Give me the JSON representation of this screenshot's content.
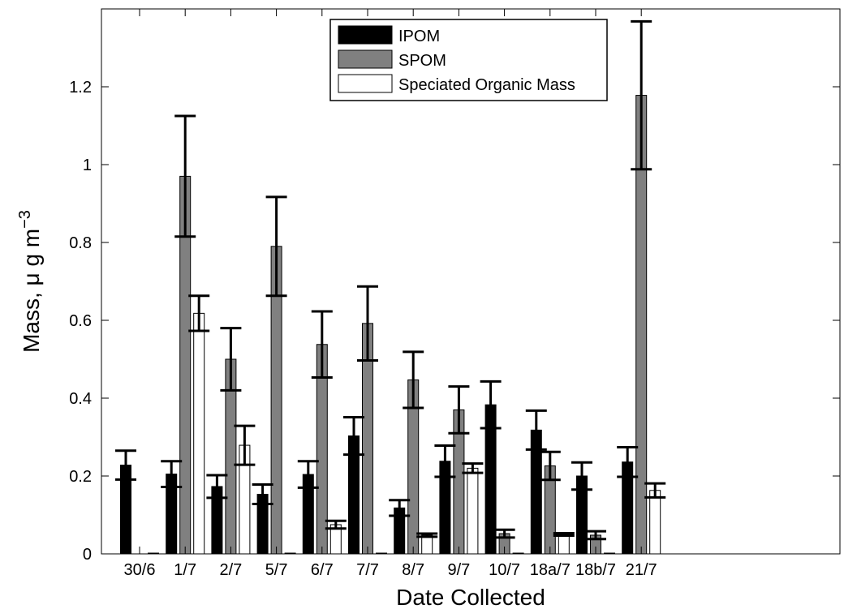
{
  "chart_data": {
    "type": "bar",
    "xlabel": "Date Collected",
    "ylabel_main": "Mass, μ g m",
    "ylabel_sup": "−3",
    "categories": [
      "30/6",
      "1/7",
      "2/7",
      "5/7",
      "6/7",
      "7/7",
      "8/7",
      "9/7",
      "10/7",
      "18a/7",
      "18b/7",
      "21/7"
    ],
    "ylim": [
      0,
      1.4
    ],
    "yticks": [
      0,
      0.2,
      0.4,
      0.6,
      0.8,
      1.0,
      1.2
    ],
    "ytick_labels": [
      "0",
      "0.2",
      "0.4",
      "0.6",
      "0.8",
      "1",
      "1.2"
    ],
    "legend_position": "top-center",
    "grid": false,
    "series": [
      {
        "name": "IPOM",
        "color": "#000000",
        "values": [
          0.228,
          0.205,
          0.173,
          0.153,
          0.204,
          0.303,
          0.118,
          0.238,
          0.383,
          0.318,
          0.2,
          0.236
        ],
        "errors": [
          0.037,
          0.033,
          0.029,
          0.025,
          0.034,
          0.048,
          0.02,
          0.04,
          0.06,
          0.05,
          0.035,
          0.038
        ]
      },
      {
        "name": "SPOM",
        "color": "#808080",
        "values": [
          0.0,
          0.97,
          0.5,
          0.79,
          0.538,
          0.592,
          0.447,
          0.37,
          0.052,
          0.226,
          0.048,
          1.178
        ],
        "errors": [
          0.0,
          0.155,
          0.08,
          0.127,
          0.085,
          0.095,
          0.072,
          0.06,
          0.01,
          0.036,
          0.01,
          0.19
        ]
      },
      {
        "name": "Speciated Organic Mass",
        "color": "#ffffff",
        "values": [
          0.002,
          0.618,
          0.279,
          0.002,
          0.075,
          0.002,
          0.048,
          0.22,
          0.002,
          0.05,
          0.002,
          0.163
        ],
        "errors": [
          0.0,
          0.045,
          0.05,
          0.0,
          0.01,
          0.0,
          0.004,
          0.012,
          0.0,
          0.003,
          0.0,
          0.018
        ]
      }
    ]
  }
}
